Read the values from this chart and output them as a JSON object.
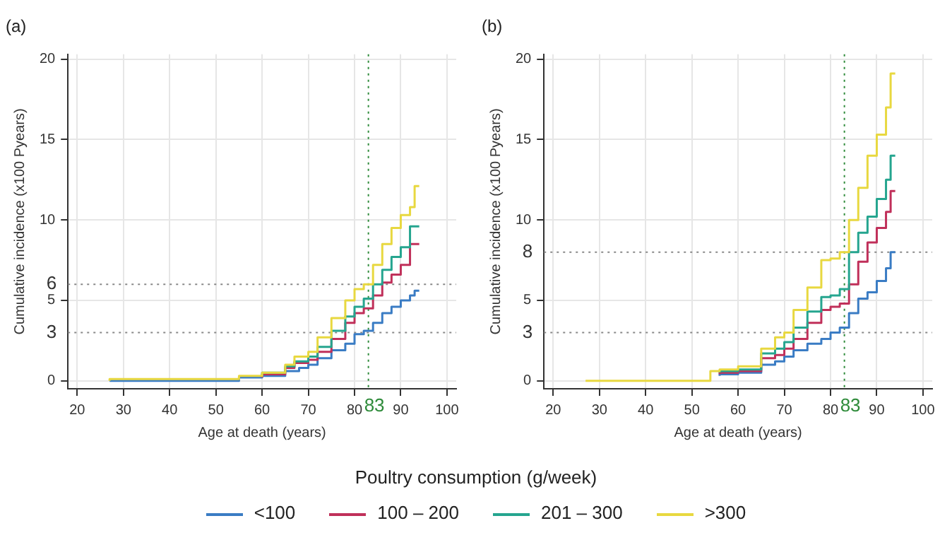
{
  "chart_data": [
    {
      "type": "step",
      "title": "(a)",
      "xlabel": "Age at death (years)",
      "ylabel": "Cumulative incidence (x100 Pyears)",
      "legend_title": "Poultry consumption (g/week)",
      "legend": "bottom",
      "grid": true,
      "xlim": [
        18,
        102
      ],
      "xticks": [
        20,
        30,
        40,
        50,
        60,
        70,
        80,
        90,
        100
      ],
      "ylim": [
        -0.5,
        20.3
      ],
      "yticks": [
        0,
        5,
        10,
        15,
        20
      ],
      "ref_lines": [
        {
          "axis": "y",
          "value": 3,
          "label": "3",
          "color": "#888888",
          "line_style": "dotted"
        },
        {
          "axis": "y",
          "value": 6,
          "label": "6",
          "color": "#888888",
          "line_style": "dotted"
        },
        {
          "axis": "x",
          "value": 83,
          "label": "83",
          "color": "#2e8b3a",
          "line_style": "dotted"
        }
      ],
      "series": [
        {
          "name": "<100",
          "color": "#3a7cc4",
          "x": [
            27,
            50,
            55,
            60,
            65,
            68,
            70,
            72,
            75,
            78,
            80,
            82,
            84,
            86,
            88,
            90,
            92,
            93,
            94
          ],
          "values": [
            0,
            0,
            0,
            0.2,
            0.3,
            0.6,
            0.8,
            1.0,
            1.4,
            1.9,
            2.3,
            2.9,
            3.1,
            3.6,
            4.2,
            4.6,
            5.0,
            5.3,
            5.6
          ]
        },
        {
          "name": "100 – 200",
          "color": "#c0305a",
          "x": [
            60,
            65,
            67,
            70,
            72,
            75,
            78,
            80,
            82,
            84,
            86,
            88,
            90,
            92,
            94
          ],
          "values": [
            0.2,
            0.4,
            0.8,
            1.1,
            1.3,
            1.8,
            2.6,
            3.6,
            4.2,
            4.5,
            5.3,
            6.1,
            6.6,
            7.2,
            8.5
          ]
        },
        {
          "name": "201 – 300",
          "color": "#25a58f",
          "x": [
            60,
            65,
            67,
            70,
            72,
            75,
            78,
            80,
            82,
            84,
            86,
            88,
            90,
            92,
            94
          ],
          "values": [
            0.3,
            0.5,
            0.9,
            1.2,
            1.5,
            2.1,
            3.1,
            4.0,
            4.6,
            5.1,
            6.0,
            6.9,
            7.7,
            8.3,
            9.6
          ]
        },
        {
          "name": ">300",
          "color": "#e8d840",
          "x": [
            27,
            55,
            60,
            65,
            67,
            70,
            72,
            75,
            78,
            80,
            82,
            84,
            86,
            88,
            90,
            92,
            93,
            94
          ],
          "values": [
            0,
            0.1,
            0.3,
            0.5,
            1.0,
            1.5,
            1.8,
            2.7,
            3.9,
            5.0,
            5.7,
            6.0,
            7.2,
            8.5,
            9.5,
            10.3,
            10.8,
            12.1
          ]
        }
      ]
    },
    {
      "type": "step",
      "title": "(b)",
      "xlabel": "Age at death (years)",
      "ylabel": "Cumulative incidence (x100 Pyears)",
      "grid": true,
      "xlim": [
        18,
        102
      ],
      "xticks": [
        20,
        30,
        40,
        50,
        60,
        70,
        80,
        90,
        100
      ],
      "ylim": [
        -0.5,
        20.3
      ],
      "yticks": [
        0,
        5,
        10,
        15,
        20
      ],
      "ref_lines": [
        {
          "axis": "y",
          "value": 3,
          "label": "3",
          "color": "#888888",
          "line_style": "dotted"
        },
        {
          "axis": "y",
          "value": 8,
          "label": "8",
          "color": "#888888",
          "line_style": "dotted"
        },
        {
          "axis": "x",
          "value": 83,
          "label": "83",
          "color": "#2e8b3a",
          "line_style": "dotted"
        }
      ],
      "series": [
        {
          "color": "#3a7cc4",
          "x": [
            56,
            60,
            65,
            68,
            70,
            72,
            75,
            78,
            80,
            82,
            84,
            86,
            88,
            90,
            92,
            93,
            94
          ],
          "values": [
            0.3,
            0.4,
            0.5,
            1.0,
            1.2,
            1.5,
            1.9,
            2.3,
            2.6,
            3.0,
            3.3,
            4.2,
            5.1,
            5.5,
            6.2,
            7.0,
            8.0
          ]
        },
        {
          "color": "#c0305a",
          "x": [
            56,
            60,
            65,
            68,
            70,
            72,
            75,
            78,
            80,
            82,
            84,
            86,
            88,
            90,
            92,
            93,
            94
          ],
          "values": [
            0.4,
            0.5,
            0.6,
            1.4,
            1.6,
            2.0,
            2.6,
            3.6,
            4.4,
            4.6,
            4.8,
            6.0,
            7.4,
            8.6,
            9.5,
            10.5,
            11.8
          ]
        },
        {
          "color": "#25a58f",
          "x": [
            56,
            60,
            65,
            68,
            70,
            72,
            75,
            78,
            80,
            82,
            84,
            86,
            88,
            90,
            92,
            93,
            94
          ],
          "values": [
            0.5,
            0.6,
            0.7,
            1.7,
            2.0,
            2.4,
            3.3,
            4.3,
            5.2,
            5.3,
            5.7,
            8.0,
            9.2,
            10.2,
            11.3,
            12.5,
            14.0
          ]
        },
        {
          "color": "#e8d840",
          "x": [
            27,
            54,
            56,
            60,
            65,
            68,
            70,
            72,
            75,
            78,
            80,
            82,
            84,
            86,
            88,
            90,
            92,
            93,
            94
          ],
          "values": [
            0,
            0,
            0.6,
            0.7,
            0.9,
            2.0,
            2.7,
            3.0,
            4.4,
            5.8,
            7.5,
            7.6,
            8.0,
            10.0,
            12.0,
            14.0,
            15.3,
            17.0,
            19.1
          ]
        }
      ]
    }
  ]
}
